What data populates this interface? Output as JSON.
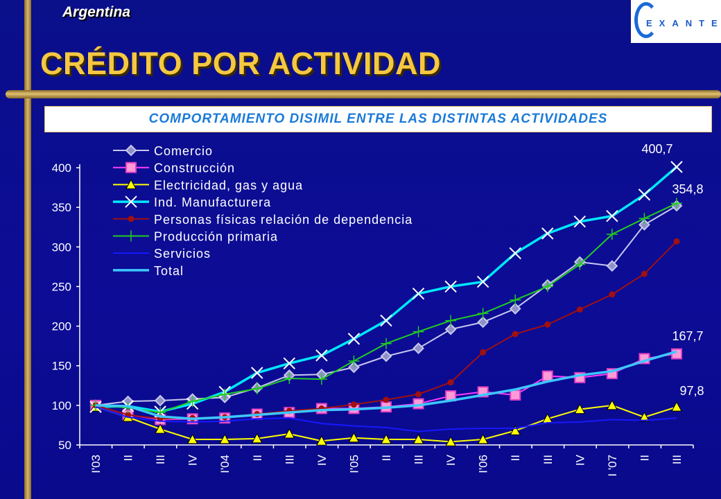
{
  "header": {
    "country": "Argentina",
    "title": "CRÉDITO POR ACTIVIDAD",
    "logo_text": "EXANTE",
    "subtitle": "COMPORTAMIENTO DISIMIL ENTRE LAS DISTINTAS ACTIVIDADES"
  },
  "colors": {
    "title": "#f5c842",
    "background": "#0a0f8a",
    "accent_bar": "#d8b868"
  },
  "chart_data": {
    "type": "line",
    "categories": [
      "I'03",
      "II",
      "III",
      "IV",
      "I'04",
      "II",
      "III",
      "IV",
      "I'05",
      "II",
      "III",
      "IV",
      "I'06",
      "II",
      "III",
      "IV",
      "I '07",
      "II",
      "III"
    ],
    "ylim": [
      50,
      400
    ],
    "yticks": [
      50,
      100,
      150,
      200,
      250,
      300,
      350,
      400
    ],
    "legend_position": "top-left",
    "series": [
      {
        "name": "Comercio",
        "color": "#c8c8f0",
        "marker": "diamond",
        "values": [
          100,
          105,
          106,
          108,
          110,
          122,
          138,
          139,
          148,
          162,
          172,
          196,
          205,
          222,
          252,
          281,
          276,
          328,
          352
        ]
      },
      {
        "name": "Construcción",
        "color": "#ff3cff",
        "marker": "square",
        "values": [
          100,
          88,
          82,
          83,
          84,
          89,
          91,
          96,
          96,
          98,
          102,
          112,
          117,
          113,
          137,
          135,
          140,
          159,
          165
        ]
      },
      {
        "name": "Electricidad, gas y agua",
        "color": "#ffff00",
        "marker": "triangle",
        "values": [
          98,
          85,
          70,
          57,
          57,
          58,
          64,
          55,
          59,
          57,
          57,
          54,
          57,
          68,
          83,
          95,
          100,
          85,
          98
        ]
      },
      {
        "name": "Ind. Manufacturera",
        "color": "#00e8ff",
        "marker": "x",
        "values": [
          98,
          99,
          92,
          102,
          117,
          141,
          153,
          163,
          184,
          207,
          241,
          250,
          256,
          292,
          317,
          332,
          339,
          366,
          401
        ]
      },
      {
        "name": "Personas físicas relación de dependencia",
        "color": "#a01010",
        "marker": "circle",
        "values": [
          100,
          88,
          83,
          84,
          85,
          89,
          93,
          96,
          101,
          107,
          114,
          129,
          167,
          190,
          202,
          221,
          240,
          266,
          307
        ]
      },
      {
        "name": "Producción primaria",
        "color": "#22cc22",
        "marker": "plus",
        "values": [
          100,
          97,
          91,
          105,
          114,
          121,
          134,
          133,
          156,
          178,
          193,
          207,
          216,
          233,
          250,
          278,
          316,
          336,
          355
        ]
      },
      {
        "name": "Servicios",
        "color": "#1818ff",
        "marker": "none",
        "values": [
          98,
          85,
          80,
          79,
          80,
          83,
          84,
          77,
          74,
          72,
          67,
          70,
          71,
          71,
          78,
          79,
          82,
          81,
          84
        ]
      },
      {
        "name": "Total",
        "color": "#3cc8ff",
        "marker": "none",
        "values": [
          100,
          99,
          86,
          83,
          85,
          88,
          91,
          94,
          95,
          97,
          100,
          106,
          113,
          120,
          130,
          138,
          143,
          156,
          168
        ]
      }
    ],
    "annotations": [
      {
        "text": "400,7",
        "series": "Ind. Manufacturera"
      },
      {
        "text": "354,8",
        "series": "Producción primaria"
      },
      {
        "text": "167,7",
        "series": "Total"
      },
      {
        "text": "97,8",
        "series": "Electricidad, gas y agua"
      }
    ]
  }
}
